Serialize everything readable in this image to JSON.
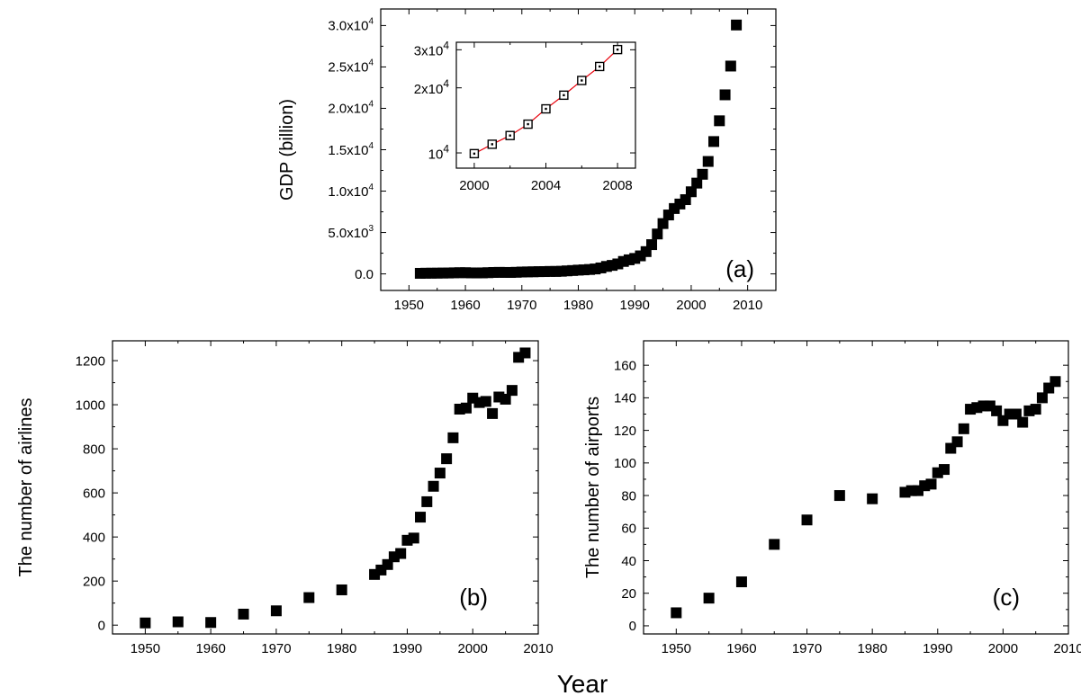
{
  "figure": {
    "xlabel_common": "Year"
  },
  "chart_data": [
    {
      "id": "a",
      "type": "scatter",
      "panel_label": "(a)",
      "xlabel": "",
      "ylabel": "GDP (billion)",
      "xlim": [
        1945,
        2015
      ],
      "ylim": [
        -2000,
        32000
      ],
      "xticks": [
        1950,
        1960,
        1970,
        1980,
        1990,
        2000,
        2010
      ],
      "yticks": [
        0,
        5000,
        10000,
        15000,
        20000,
        25000,
        30000
      ],
      "ytick_labels": [
        {
          "base": "0.0",
          "exp": ""
        },
        {
          "base": "5.0x10",
          "exp": "3"
        },
        {
          "base": "1.0x10",
          "exp": "4"
        },
        {
          "base": "1.5x10",
          "exp": "4"
        },
        {
          "base": "2.0x10",
          "exp": "4"
        },
        {
          "base": "2.5x10",
          "exp": "4"
        },
        {
          "base": "3.0x10",
          "exp": "4"
        }
      ],
      "marker": "filled-square",
      "x": [
        1952,
        1953,
        1954,
        1955,
        1956,
        1957,
        1958,
        1959,
        1960,
        1961,
        1962,
        1963,
        1964,
        1965,
        1966,
        1967,
        1968,
        1969,
        1970,
        1971,
        1972,
        1973,
        1974,
        1975,
        1976,
        1977,
        1978,
        1979,
        1980,
        1981,
        1982,
        1983,
        1984,
        1985,
        1986,
        1987,
        1988,
        1989,
        1990,
        1991,
        1992,
        1993,
        1994,
        1995,
        1996,
        1997,
        1998,
        1999,
        2000,
        2001,
        2002,
        2003,
        2004,
        2005,
        2006,
        2007,
        2008
      ],
      "y": [
        68,
        82,
        86,
        91,
        103,
        107,
        131,
        144,
        146,
        122,
        115,
        123,
        145,
        172,
        187,
        177,
        172,
        194,
        225,
        243,
        252,
        272,
        279,
        299,
        294,
        320,
        365,
        406,
        455,
        489,
        532,
        596,
        721,
        902,
        1028,
        1206,
        1504,
        1700,
        1867,
        2178,
        2692,
        3533,
        4820,
        6080,
        7118,
        7897,
        8440,
        8968,
        9921,
        10966,
        12033,
        13582,
        15988,
        18494,
        21631,
        25106,
        30067
      ]
    },
    {
      "id": "a-inset",
      "type": "scatter",
      "xlabel": "",
      "ylabel": "",
      "xlim": [
        1999,
        2009
      ],
      "ylim": [
        8500,
        32500
      ],
      "yscale": "log",
      "xticks": [
        2000,
        2004,
        2008
      ],
      "yticks": [
        10000,
        20000,
        30000
      ],
      "ytick_labels": [
        {
          "base": "10",
          "exp": "4"
        },
        {
          "base": "2x10",
          "exp": "4"
        },
        {
          "base": "3x10",
          "exp": "4"
        }
      ],
      "marker": "open-square",
      "fit_line_color": "#e8000b",
      "x": [
        2000,
        2001,
        2002,
        2003,
        2004,
        2005,
        2006,
        2007,
        2008
      ],
      "y": [
        9921,
        10966,
        12033,
        13582,
        15988,
        18494,
        21631,
        25106,
        30067
      ]
    },
    {
      "id": "b",
      "type": "scatter",
      "panel_label": "(b)",
      "xlabel": "",
      "ylabel": "The number of airlines",
      "xlim": [
        1945,
        2010
      ],
      "ylim": [
        -40,
        1290
      ],
      "xticks": [
        1950,
        1960,
        1970,
        1980,
        1990,
        2000,
        2010
      ],
      "yticks": [
        0,
        200,
        400,
        600,
        800,
        1000,
        1200
      ],
      "marker": "filled-square",
      "x": [
        1950,
        1955,
        1960,
        1965,
        1970,
        1975,
        1980,
        1985,
        1986,
        1987,
        1988,
        1989,
        1990,
        1991,
        1992,
        1993,
        1994,
        1995,
        1996,
        1997,
        1998,
        1999,
        2000,
        2001,
        2002,
        2003,
        2004,
        2005,
        2006,
        2007,
        2008
      ],
      "y": [
        10,
        15,
        12,
        50,
        65,
        125,
        160,
        230,
        250,
        275,
        310,
        325,
        385,
        395,
        490,
        560,
        630,
        690,
        755,
        850,
        980,
        985,
        1030,
        1010,
        1015,
        960,
        1035,
        1025,
        1065,
        1215,
        1235
      ]
    },
    {
      "id": "c",
      "type": "scatter",
      "panel_label": "(c)",
      "xlabel": "",
      "ylabel": "The number of airports",
      "xlim": [
        1945,
        2010
      ],
      "ylim": [
        -5,
        175
      ],
      "xticks": [
        1950,
        1960,
        1970,
        1980,
        1990,
        2000,
        2010
      ],
      "yticks": [
        0,
        20,
        40,
        60,
        80,
        100,
        120,
        140,
        160
      ],
      "marker": "filled-square",
      "x": [
        1950,
        1955,
        1960,
        1965,
        1970,
        1975,
        1980,
        1985,
        1986,
        1987,
        1988,
        1989,
        1990,
        1991,
        1992,
        1993,
        1994,
        1995,
        1996,
        1997,
        1998,
        1999,
        2000,
        2001,
        2002,
        2003,
        2004,
        2005,
        2006,
        2007,
        2008
      ],
      "y": [
        8,
        17,
        27,
        50,
        65,
        80,
        78,
        82,
        83,
        83,
        86,
        87,
        94,
        96,
        109,
        113,
        121,
        133,
        134,
        135,
        135,
        132,
        126,
        130,
        130,
        125,
        132,
        133,
        140,
        146,
        150
      ]
    }
  ]
}
